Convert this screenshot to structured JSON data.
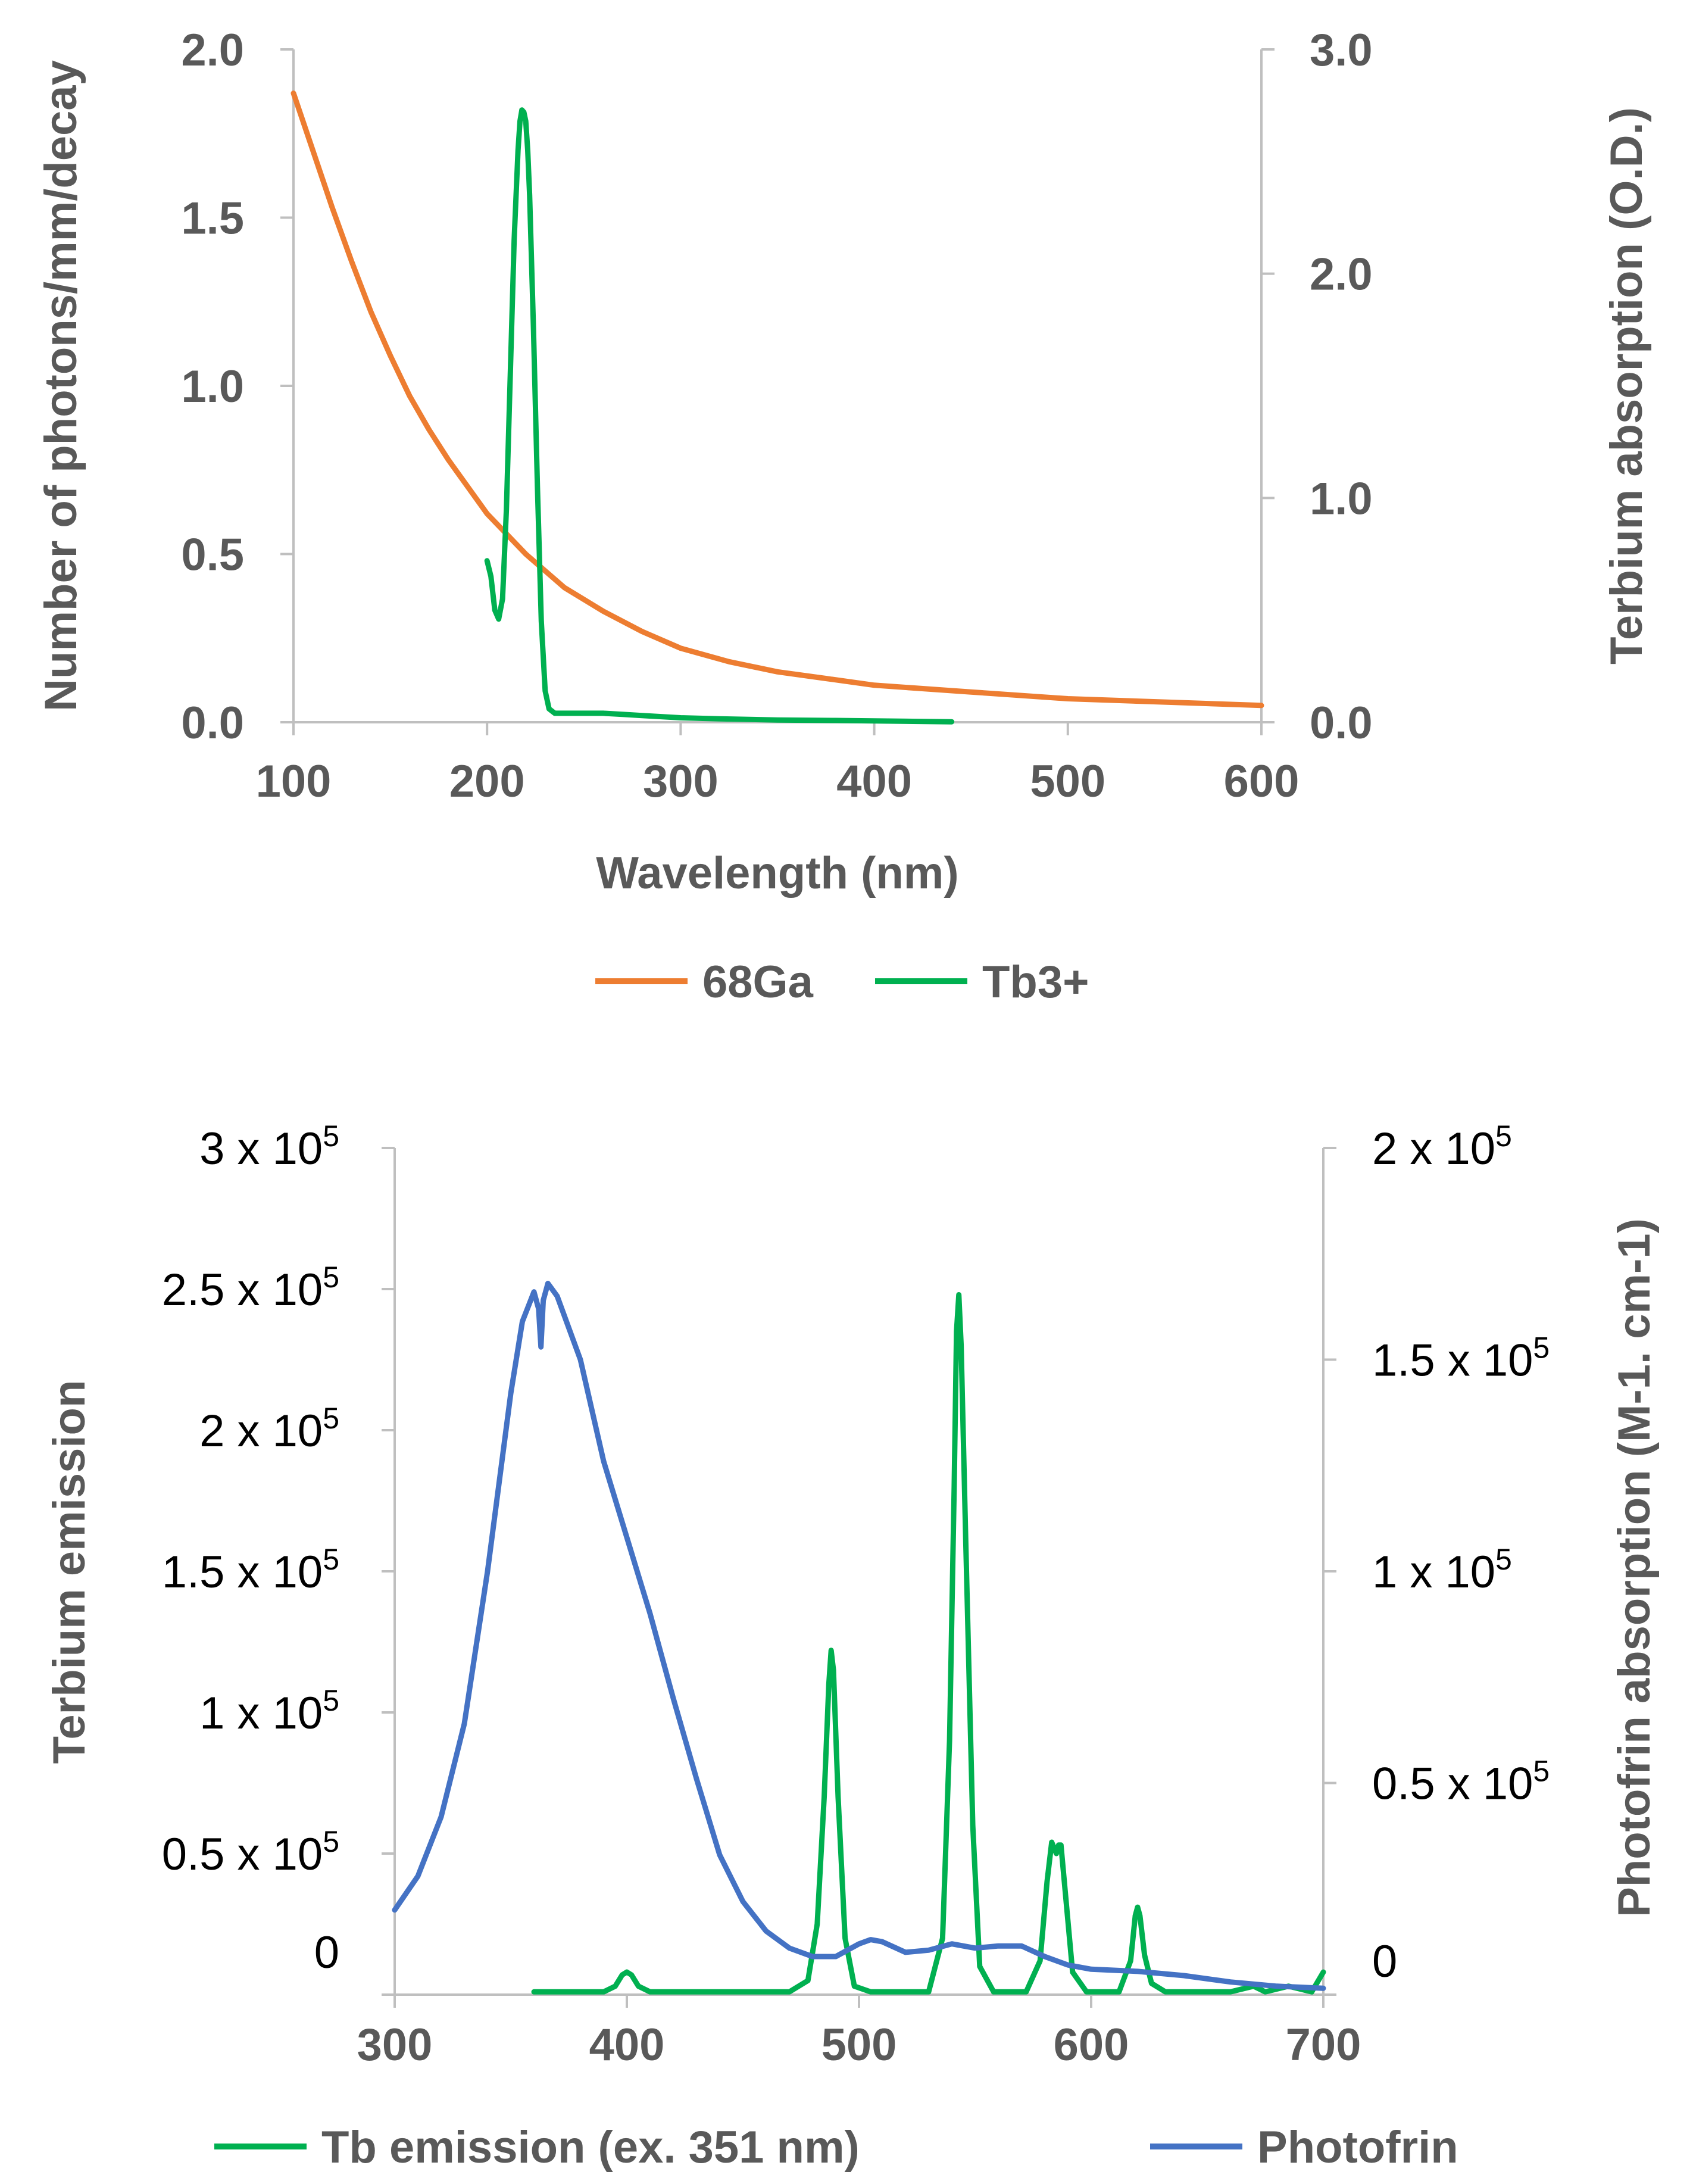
{
  "chart_data": [
    {
      "type": "line",
      "title": "",
      "xlabel": "Wavelength (nm)",
      "ylabel": "Number of photons/mm/decay",
      "y2label": "Terbium absorption (O.D.)",
      "xlim": [
        100,
        600
      ],
      "ylim": [
        0,
        2.0
      ],
      "y2lim": [
        0,
        3.0
      ],
      "x_ticks": [
        "100",
        "200",
        "300",
        "400",
        "500",
        "600"
      ],
      "y_ticks": [
        "0.0",
        "0.5",
        "1.0",
        "1.5",
        "2.0"
      ],
      "y2_ticks": [
        "0.0",
        "1.0",
        "2.0",
        "3.0"
      ],
      "legend_position": "bottom",
      "series": [
        {
          "name": "68Ga",
          "color": "#ED7D31",
          "axis": "left",
          "x": [
            100,
            110,
            120,
            130,
            140,
            150,
            160,
            170,
            180,
            190,
            200,
            220,
            240,
            260,
            280,
            300,
            325,
            350,
            375,
            400,
            450,
            500,
            550,
            600
          ],
          "y": [
            1.87,
            1.7,
            1.53,
            1.37,
            1.22,
            1.09,
            0.97,
            0.87,
            0.78,
            0.7,
            0.62,
            0.5,
            0.4,
            0.33,
            0.27,
            0.22,
            0.18,
            0.15,
            0.13,
            0.11,
            0.09,
            0.07,
            0.06,
            0.05
          ]
        },
        {
          "name": "Tb3+",
          "color": "#00B050",
          "axis": "right",
          "x": [
            200,
            202,
            204,
            206,
            208,
            210,
            212,
            214,
            216,
            217,
            218,
            219,
            220,
            221,
            222,
            224,
            226,
            228,
            230,
            232,
            235,
            240,
            250,
            260,
            270,
            280,
            300,
            320,
            350,
            380,
            400,
            420,
            440
          ],
          "y": [
            0.72,
            0.65,
            0.5,
            0.46,
            0.55,
            0.95,
            1.55,
            2.15,
            2.55,
            2.68,
            2.73,
            2.72,
            2.68,
            2.55,
            2.35,
            1.75,
            1.05,
            0.45,
            0.14,
            0.06,
            0.04,
            0.04,
            0.04,
            0.04,
            0.035,
            0.03,
            0.02,
            0.015,
            0.01,
            0.008,
            0.006,
            0.004,
            0.002
          ]
        }
      ]
    },
    {
      "type": "line",
      "title": "",
      "xlabel": "",
      "ylabel": "Terbium emission",
      "y2label": "Photofrin absorption (M-1. cm-1)",
      "xlim": [
        300,
        700
      ],
      "ylim": [
        0,
        300000
      ],
      "y2lim": [
        0,
        200000
      ],
      "x_ticks": [
        "300",
        "400",
        "500",
        "600",
        "700"
      ],
      "y_ticks": [
        {
          "base": "0",
          "exp": ""
        },
        {
          "base": "0.5 x 10",
          "exp": "5"
        },
        {
          "base": "1 x 10",
          "exp": "5"
        },
        {
          "base": "1.5 x 10",
          "exp": "5"
        },
        {
          "base": "2 x 10",
          "exp": "5"
        },
        {
          "base": "2.5 x 10",
          "exp": "5"
        },
        {
          "base": "3 x 10",
          "exp": "5"
        }
      ],
      "y2_ticks": [
        {
          "base": "0",
          "exp": ""
        },
        {
          "base": "0.5 x 10",
          "exp": "5"
        },
        {
          "base": "1 x 10",
          "exp": "5"
        },
        {
          "base": "1.5 x 10",
          "exp": "5"
        },
        {
          "base": "2 x 10",
          "exp": "5"
        }
      ],
      "legend_position": "bottom",
      "series": [
        {
          "name": "Tb emission (ex. 351 nm)",
          "color": "#00B050",
          "axis": "left",
          "x": [
            360,
            390,
            395,
            398,
            400,
            402,
            405,
            410,
            470,
            478,
            482,
            485,
            487,
            488,
            489,
            491,
            494,
            498,
            505,
            530,
            536,
            539,
            541,
            542,
            543,
            544,
            546,
            549,
            552,
            558,
            572,
            578,
            581,
            583,
            585,
            586,
            587,
            589,
            592,
            598,
            612,
            617,
            619,
            620,
            621,
            623,
            626,
            632,
            660,
            670,
            675,
            685,
            695,
            700
          ],
          "y": [
            1000,
            1000,
            3000,
            7000,
            8000,
            7000,
            3000,
            1000,
            1000,
            5000,
            25000,
            70000,
            110000,
            122000,
            115000,
            70000,
            20000,
            3000,
            1000,
            1000,
            20000,
            90000,
            180000,
            235000,
            248000,
            230000,
            160000,
            60000,
            10000,
            1000,
            1000,
            12000,
            40000,
            54000,
            50000,
            53000,
            53000,
            35000,
            8000,
            1000,
            1000,
            12000,
            28000,
            31000,
            28000,
            14000,
            4000,
            1000,
            1000,
            3000,
            1000,
            3000,
            1000,
            8000
          ]
        },
        {
          "name": "Photofrin",
          "color": "#4472C4",
          "axis": "right",
          "x": [
            300,
            310,
            320,
            330,
            340,
            350,
            355,
            360,
            362,
            363,
            364,
            366,
            370,
            380,
            390,
            400,
            410,
            420,
            430,
            440,
            450,
            460,
            470,
            480,
            490,
            500,
            505,
            510,
            520,
            530,
            540,
            550,
            560,
            570,
            580,
            590,
            600,
            620,
            640,
            660,
            680,
            700
          ],
          "y": [
            20000,
            28000,
            42000,
            64000,
            100000,
            142000,
            159000,
            166000,
            162000,
            153000,
            164000,
            168000,
            165000,
            150000,
            126000,
            108000,
            90000,
            70000,
            51000,
            33000,
            22000,
            15000,
            11000,
            9000,
            9000,
            12000,
            13000,
            12500,
            10000,
            10500,
            12000,
            11000,
            11500,
            11500,
            9000,
            7000,
            6000,
            5500,
            4500,
            3000,
            2000,
            1500
          ]
        }
      ]
    }
  ]
}
